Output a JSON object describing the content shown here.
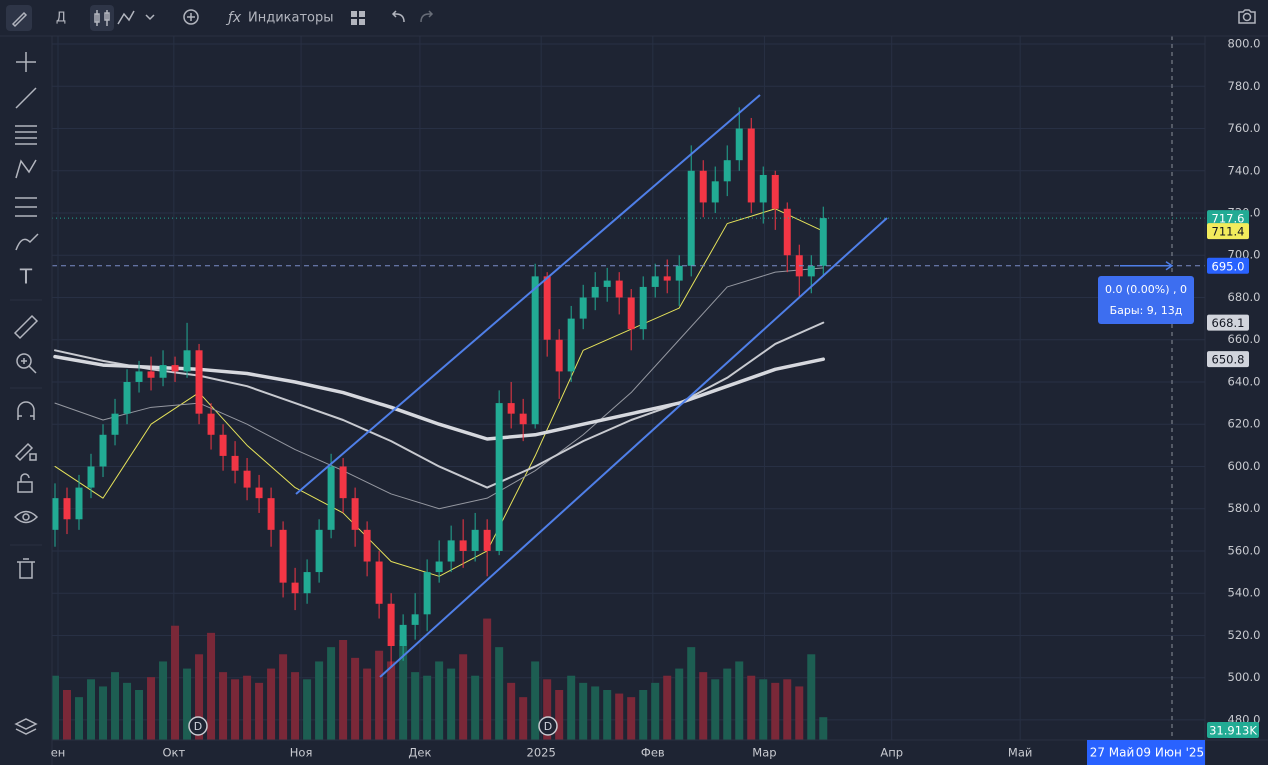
{
  "toolbar": {
    "interval": "Д",
    "indicators": "Индикаторы"
  },
  "chart_data": {
    "type": "candlestick",
    "up_color": "#22ab94",
    "down_color": "#f23645",
    "volume_up_color": "#1d5e52",
    "volume_down_color": "#7a2838",
    "grid": true,
    "xlim": [
      -0.25,
      95.8
    ],
    "xticks": [
      {
        "value": 0.25,
        "label": "ен"
      },
      {
        "value": 9.9,
        "label": "Окт"
      },
      {
        "value": 20.5,
        "label": "Ноя"
      },
      {
        "value": 30.4,
        "label": "Дек"
      },
      {
        "value": 40.5,
        "label": "2025"
      },
      {
        "value": 49.8,
        "label": "Фев"
      },
      {
        "value": 59.1,
        "label": "Мар"
      },
      {
        "value": 69.7,
        "label": "Апр"
      },
      {
        "value": 80.4,
        "label": "Май"
      }
    ],
    "ylim": [
      470.5,
      803.8
    ],
    "yticks": [
      {
        "value": 480,
        "label": "480.0"
      },
      {
        "value": 500,
        "label": "500.0"
      },
      {
        "value": 520,
        "label": "520.0"
      },
      {
        "value": 540,
        "label": "540.0"
      },
      {
        "value": 560,
        "label": "560.0"
      },
      {
        "value": 580,
        "label": "580.0"
      },
      {
        "value": 600,
        "label": "600.0"
      },
      {
        "value": 620,
        "label": "620.0"
      },
      {
        "value": 640,
        "label": "640.0"
      },
      {
        "value": 660,
        "label": "660.0"
      },
      {
        "value": 680,
        "label": "680.0"
      },
      {
        "value": 700,
        "label": "700.0"
      },
      {
        "value": 720,
        "label": "720.0"
      },
      {
        "value": 740,
        "label": "740.0"
      },
      {
        "value": 760,
        "label": "760.0"
      },
      {
        "value": 780,
        "label": "780.0"
      },
      {
        "value": 800,
        "label": "800.0"
      }
    ],
    "open": [
      570,
      585,
      575,
      590,
      600,
      615,
      625,
      640,
      645,
      642,
      648,
      645,
      655,
      625,
      615,
      605,
      598,
      590,
      585,
      570,
      545,
      540,
      550,
      570,
      600,
      585,
      570,
      555,
      535,
      515,
      525,
      530,
      550,
      555,
      565,
      560,
      570,
      560,
      630,
      625,
      620,
      690,
      660,
      645,
      670,
      680,
      685,
      688,
      680,
      665,
      685,
      690,
      688,
      695,
      740,
      725,
      735,
      745,
      760,
      725,
      738,
      722,
      700,
      690,
      695
    ],
    "high": [
      592,
      590,
      596,
      606,
      620,
      632,
      646,
      650,
      652,
      655,
      652,
      668,
      658,
      630,
      620,
      612,
      604,
      596,
      590,
      574,
      552,
      556,
      575,
      606,
      604,
      590,
      574,
      560,
      540,
      530,
      540,
      556,
      565,
      572,
      575,
      578,
      575,
      636,
      640,
      632,
      696,
      692,
      665,
      676,
      686,
      692,
      694,
      692,
      684,
      690,
      696,
      698,
      700,
      752,
      745,
      742,
      752,
      770,
      765,
      742,
      740,
      725,
      705,
      700,
      723
    ],
    "low": [
      562,
      568,
      570,
      585,
      595,
      610,
      620,
      635,
      636,
      638,
      640,
      642,
      620,
      608,
      598,
      592,
      584,
      578,
      562,
      538,
      532,
      535,
      545,
      566,
      578,
      562,
      548,
      528,
      505,
      508,
      518,
      522,
      545,
      550,
      552,
      555,
      548,
      558,
      618,
      612,
      618,
      652,
      632,
      640,
      665,
      674,
      678,
      672,
      655,
      660,
      680,
      682,
      676,
      690,
      718,
      720,
      728,
      740,
      720,
      715,
      712,
      692,
      680,
      682,
      690
    ],
    "close": [
      585,
      575,
      590,
      600,
      615,
      625,
      640,
      645,
      642,
      648,
      645,
      655,
      625,
      615,
      605,
      598,
      590,
      585,
      570,
      545,
      540,
      550,
      570,
      600,
      585,
      570,
      555,
      535,
      515,
      525,
      530,
      550,
      555,
      565,
      560,
      570,
      560,
      630,
      625,
      620,
      690,
      660,
      645,
      670,
      680,
      685,
      688,
      680,
      665,
      685,
      690,
      688,
      695,
      740,
      725,
      735,
      745,
      760,
      725,
      738,
      722,
      700,
      690,
      695,
      717.6
    ],
    "volume": {
      "values": [
        90000,
        70000,
        60000,
        85000,
        75000,
        95000,
        80000,
        70000,
        88000,
        110000,
        160000,
        100000,
        120000,
        150000,
        95000,
        85000,
        90000,
        80000,
        100000,
        120000,
        95000,
        85000,
        110000,
        130000,
        140000,
        115000,
        100000,
        125000,
        110000,
        140000,
        95000,
        90000,
        110000,
        100000,
        120000,
        90000,
        170000,
        130000,
        80000,
        60000,
        110000,
        85000,
        70000,
        90000,
        80000,
        75000,
        70000,
        65000,
        60000,
        70000,
        80000,
        90000,
        100000,
        130000,
        95000,
        85000,
        100000,
        110000,
        90000,
        85000,
        80000,
        85000,
        75000,
        120000,
        31913
      ],
      "last_label": "31.913K"
    },
    "series": [
      {
        "color": "#e6e35a",
        "width": 1,
        "label_color": "#f2ec5c",
        "x": [
          0,
          4,
          8,
          12,
          16,
          20,
          24,
          28,
          32,
          36,
          40,
          44,
          48,
          52,
          56,
          60,
          64
        ],
        "values": [
          600,
          585,
          620,
          635,
          610,
          590,
          578,
          555,
          548,
          560,
          605,
          655,
          665,
          675,
          715,
          722,
          711.4
        ]
      },
      {
        "color": "#9598a1",
        "width": 1,
        "x": [
          0,
          4,
          8,
          12,
          16,
          20,
          24,
          28,
          32,
          36,
          40,
          44,
          48,
          52,
          56,
          60,
          64
        ],
        "values": [
          630,
          622,
          628,
          630,
          620,
          608,
          598,
          587,
          580,
          585,
          598,
          615,
          635,
          660,
          685,
          692,
          694
        ]
      },
      {
        "color": "#c8cad0",
        "width": 2,
        "label_color": "#d1d4dc",
        "x": [
          0,
          4,
          8,
          12,
          16,
          20,
          24,
          28,
          32,
          36,
          40,
          44,
          48,
          52,
          56,
          60,
          64
        ],
        "values": [
          655,
          650,
          646,
          643,
          638,
          630,
          622,
          612,
          600,
          590,
          600,
          612,
          622,
          630,
          642,
          658,
          668.1
        ]
      },
      {
        "color": "#d6d8de",
        "width": 3.5,
        "label_color": "#d1d4dc",
        "x": [
          0,
          4,
          8,
          12,
          16,
          20,
          24,
          28,
          32,
          36,
          40,
          44,
          48,
          52,
          56,
          60,
          64
        ],
        "values": [
          652,
          648,
          647,
          646,
          644,
          640,
          635,
          628,
          620,
          613,
          615,
          620,
          625,
          630,
          638,
          646,
          650.8
        ]
      }
    ],
    "dividends": [
      "D",
      "D"
    ],
    "measure": {
      "price": {
        "value": 695,
        "label": "695.0"
      },
      "change": "0.0 (0.00%) , 0",
      "bars": "Бары: 9, 13д",
      "date_from": "27 Май",
      "date_to": "09 Июн '25"
    }
  }
}
